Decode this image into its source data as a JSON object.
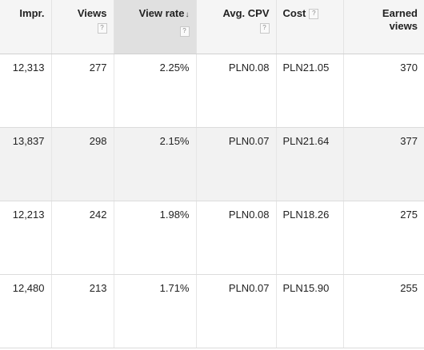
{
  "columns": {
    "impr": "Impr.",
    "views": "Views",
    "view_rate": "View rate",
    "avg_cpv": "Avg. CPV",
    "cost": "Cost",
    "earned_views_line1": "Earned",
    "earned_views_line2": "views",
    "help_glyph": "?",
    "sort_glyph": "↓"
  },
  "sorted_column": "view_rate",
  "sort_direction": "descending",
  "icons": {
    "help": "help-icon",
    "sort": "sort-descending-icon"
  },
  "colors": {
    "header_bg": "#f5f5f5",
    "sorted_header_bg": "#e0e0e0",
    "alt_row_bg": "#f2f2f2"
  },
  "rows": [
    {
      "impr": "12,313",
      "views": "277",
      "view_rate": "2.25%",
      "avg_cpv": "PLN0.08",
      "cost": "PLN21.05",
      "earned_views": "370"
    },
    {
      "impr": "13,837",
      "views": "298",
      "view_rate": "2.15%",
      "avg_cpv": "PLN0.07",
      "cost": "PLN21.64",
      "earned_views": "377"
    },
    {
      "impr": "12,213",
      "views": "242",
      "view_rate": "1.98%",
      "avg_cpv": "PLN0.08",
      "cost": "PLN18.26",
      "earned_views": "275"
    },
    {
      "impr": "12,480",
      "views": "213",
      "view_rate": "1.71%",
      "avg_cpv": "PLN0.07",
      "cost": "PLN15.90",
      "earned_views": "255"
    }
  ]
}
